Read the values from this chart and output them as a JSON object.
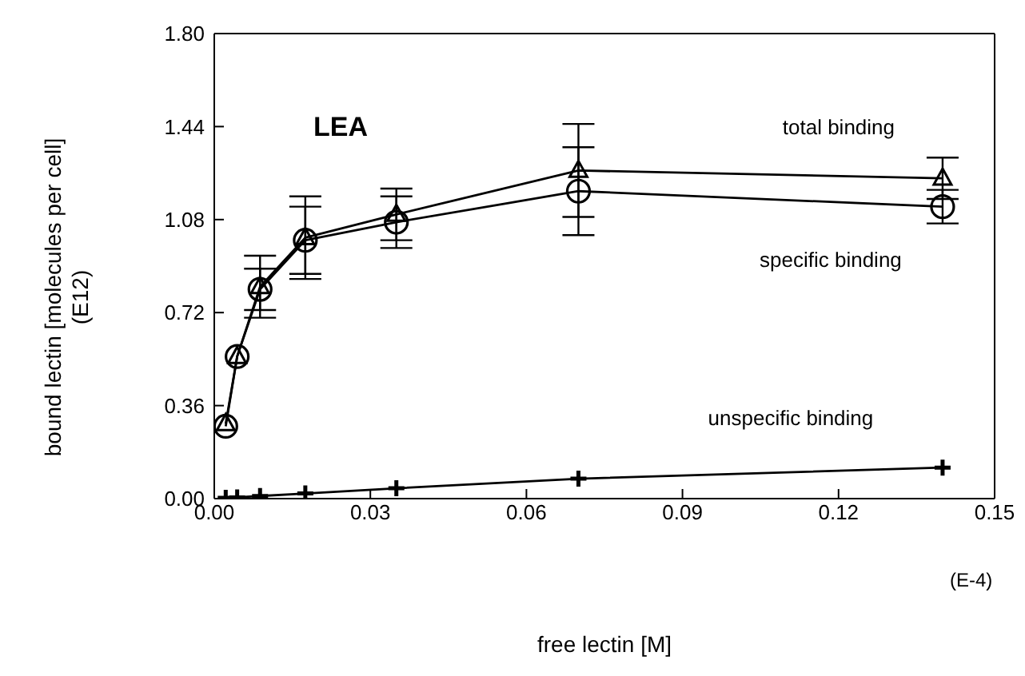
{
  "chart_data": {
    "type": "line",
    "xlabel": "free lectin [M]",
    "ylabel": "bound lectin  [molecules per cell]\n(E12)",
    "x": [
      0.0022,
      0.0044,
      0.0088,
      0.0175,
      0.035,
      0.07,
      0.14
    ],
    "series": [
      {
        "name": "total binding",
        "color": "#000000",
        "marker": "triangle",
        "values": [
          0.29,
          0.55,
          0.82,
          1.01,
          1.1,
          1.27,
          1.24
        ],
        "errors": [
          null,
          null,
          0.12,
          0.16,
          0.1,
          0.18,
          0.08
        ]
      },
      {
        "name": "specific binding",
        "color": "#000000",
        "marker": "circle",
        "values": [
          0.28,
          0.55,
          0.81,
          1.0,
          1.07,
          1.19,
          1.13
        ],
        "errors": [
          null,
          null,
          0.08,
          0.13,
          0.1,
          0.17,
          0.065
        ]
      },
      {
        "name": "unspecific binding",
        "color": "#000000",
        "marker": "cross",
        "values": [
          0.003,
          0.005,
          0.01,
          0.02,
          0.04,
          0.077,
          0.12
        ]
      }
    ],
    "xlim": [
      0,
      0.15
    ],
    "xticks": [
      {
        "value": 0,
        "label": "0.00"
      },
      {
        "value": 0.03,
        "label": "0.03"
      },
      {
        "value": 0.06,
        "label": "0.06"
      },
      {
        "value": 0.09,
        "label": "0.09"
      },
      {
        "value": 0.12,
        "label": "0.12"
      },
      {
        "value": 0.15,
        "label": "0.15"
      }
    ],
    "ylim": [
      0,
      1.8
    ],
    "yticks": [
      {
        "value": 0,
        "label": "0.00"
      },
      {
        "value": 0.36,
        "label": "0.36"
      },
      {
        "value": 0.72,
        "label": "0.72"
      },
      {
        "value": 1.08,
        "label": "1.08"
      },
      {
        "value": 1.44,
        "label": "1.44"
      },
      {
        "value": 1.8,
        "label": "1.80"
      }
    ],
    "annotations": [
      "LEA",
      "(E-4)"
    ],
    "grid": false,
    "legend": false,
    "line_style": "solid"
  }
}
